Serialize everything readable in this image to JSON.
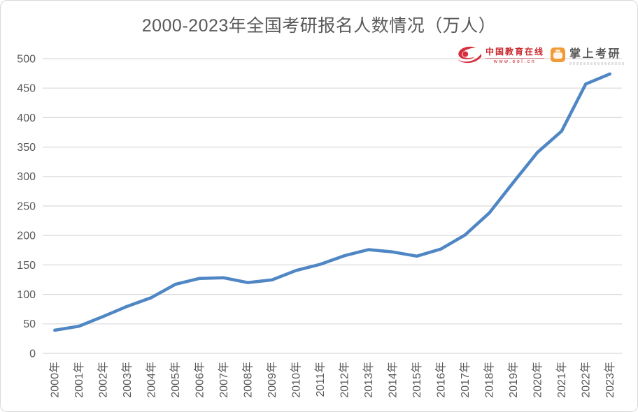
{
  "header": {
    "title": "2000-2023年全国考研报名人数情况（万人）"
  },
  "logos": {
    "eol": {
      "name": "中国教育在线",
      "url_text": "www.eol.cn",
      "color": "#c9252c",
      "icon": "eol-swoosh-icon"
    },
    "zsky": {
      "name": "掌上考研",
      "color": "#f19a38",
      "icon": "zhangshang-kaoyan-app-icon"
    }
  },
  "chart_data": {
    "type": "line",
    "title": "2000-2023年全国考研报名人数情况（万人）",
    "x": [
      "2000年",
      "2001年",
      "2002年",
      "2003年",
      "2004年",
      "2005年",
      "2006年",
      "2007年",
      "2008年",
      "2009年",
      "2010年",
      "2011年",
      "2012年",
      "2013年",
      "2014年",
      "2015年",
      "2016年",
      "2017年",
      "2018年",
      "2019年",
      "2020年",
      "2021年",
      "2022年",
      "2023年"
    ],
    "values": [
      39.2,
      46,
      62.4,
      79.7,
      94.5,
      117.2,
      127.1,
      128.2,
      120,
      124.6,
      140.6,
      151.1,
      165.6,
      176,
      172,
      164.9,
      177,
      201,
      238,
      290,
      341,
      377,
      457,
      474
    ],
    "xlabel": "",
    "ylabel": "",
    "ylim": [
      0,
      500
    ],
    "yticks": [
      0,
      50,
      100,
      150,
      200,
      250,
      300,
      350,
      400,
      450,
      500
    ],
    "grid": true,
    "legend": "none",
    "line_color": "#4f86c4",
    "grid_color": "#d9d9d9",
    "tick_color": "#595959"
  }
}
